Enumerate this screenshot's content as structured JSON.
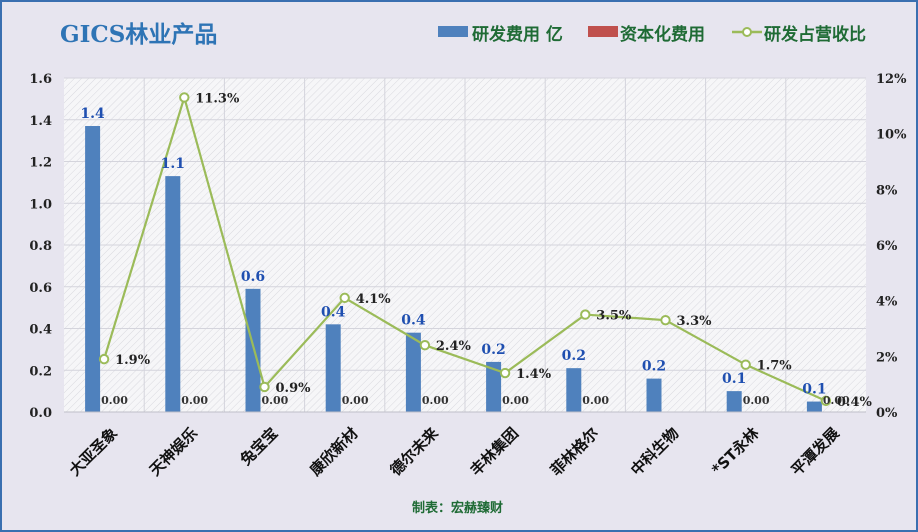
{
  "chart_data": {
    "type": "bar",
    "title": "GICS林业产品",
    "categories": [
      "大亚圣象",
      "天神娱乐",
      "兔宝宝",
      "康欣新材",
      "德尔未来",
      "丰林集团",
      "菲林格尔",
      "中科生物",
      "*ST永林",
      "平潭发展"
    ],
    "series": [
      {
        "name": "研发费用 亿",
        "type": "bar",
        "axis": "left",
        "color": "#4f81bd",
        "values": [
          1.37,
          1.13,
          0.59,
          0.42,
          0.38,
          0.24,
          0.21,
          0.16,
          0.1,
          0.05
        ],
        "labels": [
          "1.4",
          "1.1",
          "0.6",
          "0.4",
          "0.4",
          "0.2",
          "0.2",
          "0.2",
          "0.1",
          "0.1"
        ]
      },
      {
        "name": "资本化费用",
        "type": "bar",
        "axis": "left",
        "color": "#c0504d",
        "values": [
          0,
          0,
          0,
          0,
          0,
          0,
          0,
          0,
          0,
          0
        ],
        "labels": [
          "0.00",
          "0.00",
          "0.00",
          "0.00",
          "0.00",
          "0.00",
          "0.00",
          "",
          "0.00",
          "0.00"
        ]
      },
      {
        "name": "研发占营收比",
        "type": "line",
        "axis": "right",
        "color": "#9bbb59",
        "values": [
          1.9,
          11.3,
          0.9,
          4.1,
          2.4,
          1.4,
          3.5,
          3.3,
          1.7,
          0.4
        ],
        "labels": [
          "1.9%",
          "11.3%",
          "0.9%",
          "4.1%",
          "2.4%",
          "1.4%",
          "3.5%",
          "3.3%",
          "1.7%",
          "0.4%"
        ]
      }
    ],
    "y_left": {
      "range": [
        0,
        1.6
      ],
      "ticks": [
        "0.0",
        "0.2",
        "0.4",
        "0.6",
        "0.8",
        "1.0",
        "1.2",
        "1.4",
        "1.6"
      ]
    },
    "y_right": {
      "range": [
        0,
        12
      ],
      "ticks": [
        "0%",
        "2%",
        "4%",
        "6%",
        "8%",
        "10%",
        "12%"
      ]
    },
    "legend": "top-right",
    "grid": true
  },
  "source": "制表：宏赫臻财"
}
